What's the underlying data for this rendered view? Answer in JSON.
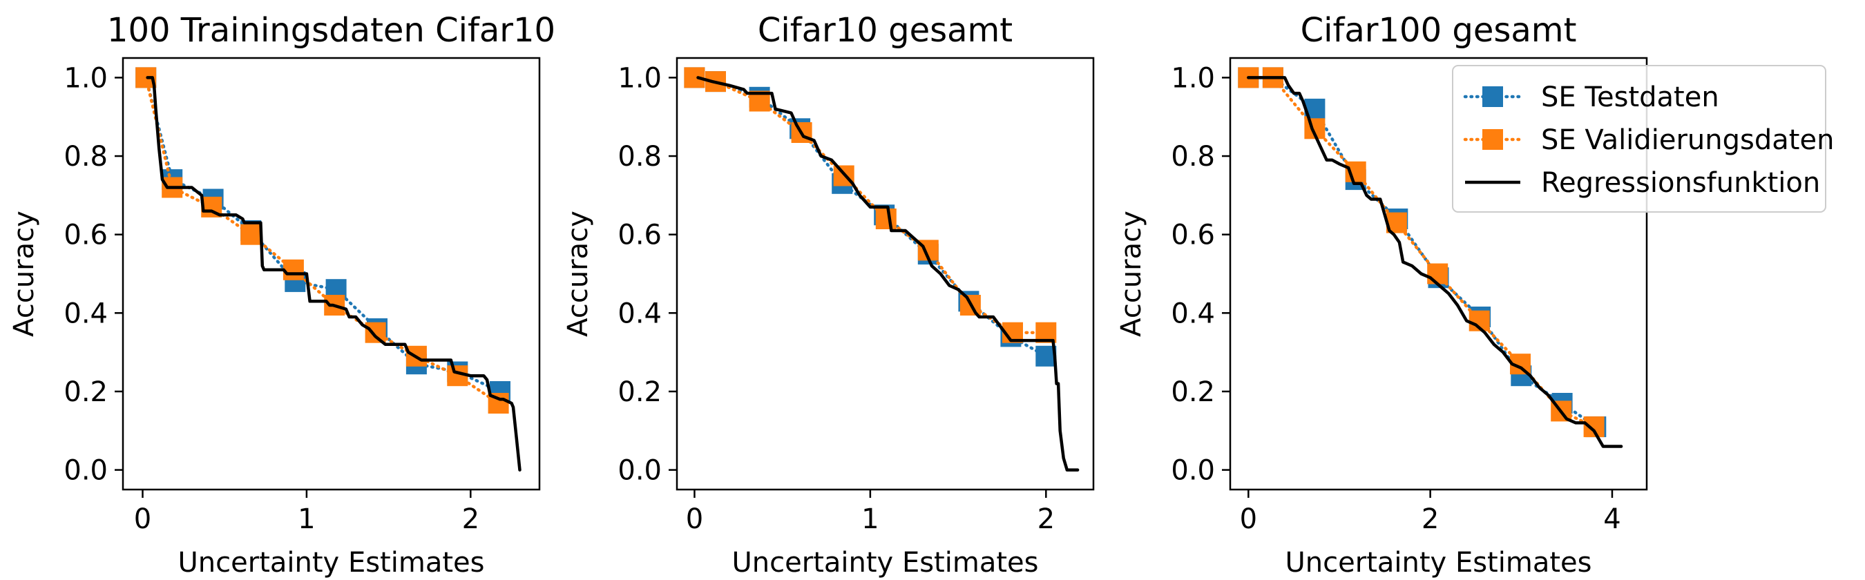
{
  "chart_data": [
    {
      "type": "line",
      "title": "100 Trainingsdaten Cifar10",
      "xlabel": "Uncertainty Estimates",
      "ylabel": "Accuracy",
      "xlim": [
        -0.12,
        2.42
      ],
      "ylim": [
        -0.05,
        1.05
      ],
      "xticks": [
        0,
        1,
        2
      ],
      "yticks": [
        0.0,
        0.2,
        0.4,
        0.6,
        0.8,
        1.0
      ],
      "legend": false,
      "series": [
        {
          "name": "SE Testdaten",
          "style": "dotted-square",
          "color": "#1f77b4",
          "x": [
            0.02,
            0.18,
            0.43,
            0.66,
            0.93,
            1.18,
            1.43,
            1.67,
            1.92,
            2.18
          ],
          "y": [
            1.0,
            0.74,
            0.69,
            0.61,
            0.48,
            0.46,
            0.36,
            0.27,
            0.25,
            0.2
          ]
        },
        {
          "name": "SE Validierungsdaten",
          "style": "dotted-square",
          "color": "#ff7f0e",
          "x": [
            0.02,
            0.18,
            0.42,
            0.66,
            0.92,
            1.17,
            1.42,
            1.67,
            1.92,
            2.17
          ],
          "y": [
            1.0,
            0.72,
            0.67,
            0.6,
            0.51,
            0.42,
            0.35,
            0.29,
            0.24,
            0.17
          ]
        },
        {
          "name": "Regressionsfunktion",
          "style": "line",
          "color": "#000000",
          "x": [
            0.03,
            0.06,
            0.07,
            0.08,
            0.1,
            0.12,
            0.15,
            0.2,
            0.25,
            0.3,
            0.33,
            0.36,
            0.37,
            0.42,
            0.47,
            0.52,
            0.57,
            0.61,
            0.62,
            0.72,
            0.73,
            0.74,
            0.86,
            0.88,
            1.0,
            1.02,
            1.12,
            1.14,
            1.16,
            1.24,
            1.26,
            1.3,
            1.34,
            1.38,
            1.42,
            1.48,
            1.52,
            1.6,
            1.62,
            1.66,
            1.7,
            1.88,
            1.9,
            2.0,
            2.02,
            2.04,
            2.06,
            2.08,
            2.1,
            2.12,
            2.18,
            2.2,
            2.25,
            2.26,
            2.28,
            2.3
          ],
          "y": [
            1.0,
            1.0,
            0.98,
            0.92,
            0.82,
            0.74,
            0.72,
            0.72,
            0.72,
            0.72,
            0.71,
            0.7,
            0.66,
            0.66,
            0.65,
            0.65,
            0.65,
            0.64,
            0.63,
            0.63,
            0.52,
            0.51,
            0.51,
            0.5,
            0.5,
            0.43,
            0.43,
            0.42,
            0.42,
            0.41,
            0.39,
            0.39,
            0.37,
            0.36,
            0.34,
            0.32,
            0.32,
            0.32,
            0.3,
            0.29,
            0.28,
            0.28,
            0.25,
            0.24,
            0.24,
            0.24,
            0.24,
            0.24,
            0.23,
            0.19,
            0.18,
            0.18,
            0.17,
            0.16,
            0.08,
            0.0
          ]
        }
      ]
    },
    {
      "type": "line",
      "title": "Cifar10 gesamt",
      "xlabel": "Uncertainty Estimates",
      "ylabel": "Accuracy",
      "xlim": [
        -0.1,
        2.27
      ],
      "ylim": [
        -0.05,
        1.05
      ],
      "xticks": [
        0,
        1,
        2
      ],
      "yticks": [
        0.0,
        0.2,
        0.4,
        0.6,
        0.8,
        1.0
      ],
      "legend": false,
      "series": [
        {
          "name": "SE Testdaten",
          "style": "dotted-square",
          "color": "#1f77b4",
          "x": [
            0.0,
            0.12,
            0.37,
            0.6,
            0.84,
            1.08,
            1.33,
            1.56,
            1.8,
            2.0
          ],
          "y": [
            1.0,
            0.99,
            0.95,
            0.87,
            0.73,
            0.65,
            0.55,
            0.43,
            0.34,
            0.29
          ]
        },
        {
          "name": "SE Validierungsdaten",
          "style": "dotted-square",
          "color": "#ff7f0e",
          "x": [
            0.0,
            0.12,
            0.37,
            0.61,
            0.85,
            1.09,
            1.33,
            1.57,
            1.81,
            2.0
          ],
          "y": [
            1.0,
            0.99,
            0.94,
            0.86,
            0.75,
            0.64,
            0.56,
            0.42,
            0.35,
            0.35
          ]
        },
        {
          "name": "Regressionsfunktion",
          "style": "line",
          "color": "#000000",
          "x": [
            0.02,
            0.1,
            0.2,
            0.28,
            0.3,
            0.44,
            0.46,
            0.55,
            0.58,
            0.62,
            0.68,
            0.72,
            0.78,
            0.82,
            0.86,
            0.9,
            0.94,
            0.98,
            1.0,
            1.1,
            1.12,
            1.2,
            1.25,
            1.3,
            1.35,
            1.4,
            1.45,
            1.5,
            1.55,
            1.6,
            1.62,
            1.7,
            1.75,
            1.8,
            1.85,
            1.9,
            2.0,
            2.04,
            2.05,
            2.06,
            2.07,
            2.08,
            2.1,
            2.12,
            2.14,
            2.18
          ],
          "y": [
            1.0,
            0.99,
            0.98,
            0.97,
            0.96,
            0.96,
            0.92,
            0.91,
            0.88,
            0.85,
            0.84,
            0.8,
            0.79,
            0.77,
            0.75,
            0.73,
            0.7,
            0.68,
            0.67,
            0.67,
            0.61,
            0.61,
            0.59,
            0.57,
            0.52,
            0.5,
            0.47,
            0.46,
            0.44,
            0.4,
            0.39,
            0.39,
            0.36,
            0.33,
            0.33,
            0.33,
            0.33,
            0.33,
            0.29,
            0.22,
            0.22,
            0.1,
            0.03,
            0.0,
            0.0,
            0.0
          ]
        }
      ]
    },
    {
      "type": "line",
      "title": "Cifar100 gesamt",
      "xlabel": "Uncertainty Estimates",
      "ylabel": "Accuracy",
      "xlim": [
        -0.2,
        4.38
      ],
      "ylim": [
        -0.05,
        1.05
      ],
      "xticks": [
        0,
        2,
        4
      ],
      "yticks": [
        0.0,
        0.2,
        0.4,
        0.6,
        0.8,
        1.0
      ],
      "legend": true,
      "legend_position": "upper-right",
      "series": [
        {
          "name": "SE Testdaten",
          "style": "dotted-square",
          "color": "#1f77b4",
          "x": [
            0.0,
            0.27,
            0.73,
            1.18,
            1.64,
            2.09,
            2.55,
            3.0,
            3.45,
            3.82
          ],
          "y": [
            1.0,
            1.0,
            0.92,
            0.74,
            0.64,
            0.49,
            0.39,
            0.24,
            0.17,
            0.11
          ]
        },
        {
          "name": "SE Validierungsdaten",
          "style": "dotted-square",
          "color": "#ff7f0e",
          "x": [
            0.0,
            0.27,
            0.73,
            1.18,
            1.63,
            2.08,
            2.54,
            2.99,
            3.44,
            3.8
          ],
          "y": [
            1.0,
            1.0,
            0.87,
            0.76,
            0.63,
            0.5,
            0.38,
            0.27,
            0.15,
            0.11
          ]
        },
        {
          "name": "Regressionsfunktion",
          "style": "line",
          "color": "#000000",
          "x": [
            0.0,
            0.1,
            0.3,
            0.4,
            0.44,
            0.5,
            0.56,
            0.6,
            0.66,
            0.7,
            0.74,
            0.8,
            0.86,
            0.92,
            1.0,
            1.1,
            1.16,
            1.24,
            1.3,
            1.35,
            1.45,
            1.55,
            1.6,
            1.66,
            1.7,
            1.8,
            1.9,
            2.0,
            2.1,
            2.2,
            2.3,
            2.4,
            2.5,
            2.6,
            2.7,
            2.8,
            2.9,
            3.0,
            3.1,
            3.2,
            3.3,
            3.4,
            3.5,
            3.6,
            3.7,
            3.8,
            3.9,
            4.0,
            4.1
          ],
          "y": [
            1.0,
            1.0,
            1.0,
            1.0,
            0.98,
            0.96,
            0.96,
            0.94,
            0.9,
            0.87,
            0.85,
            0.82,
            0.79,
            0.79,
            0.78,
            0.77,
            0.73,
            0.73,
            0.7,
            0.69,
            0.69,
            0.61,
            0.6,
            0.58,
            0.53,
            0.52,
            0.5,
            0.49,
            0.47,
            0.45,
            0.42,
            0.38,
            0.37,
            0.35,
            0.32,
            0.3,
            0.27,
            0.26,
            0.24,
            0.21,
            0.19,
            0.16,
            0.13,
            0.12,
            0.12,
            0.1,
            0.06,
            0.06,
            0.06
          ]
        }
      ]
    }
  ]
}
